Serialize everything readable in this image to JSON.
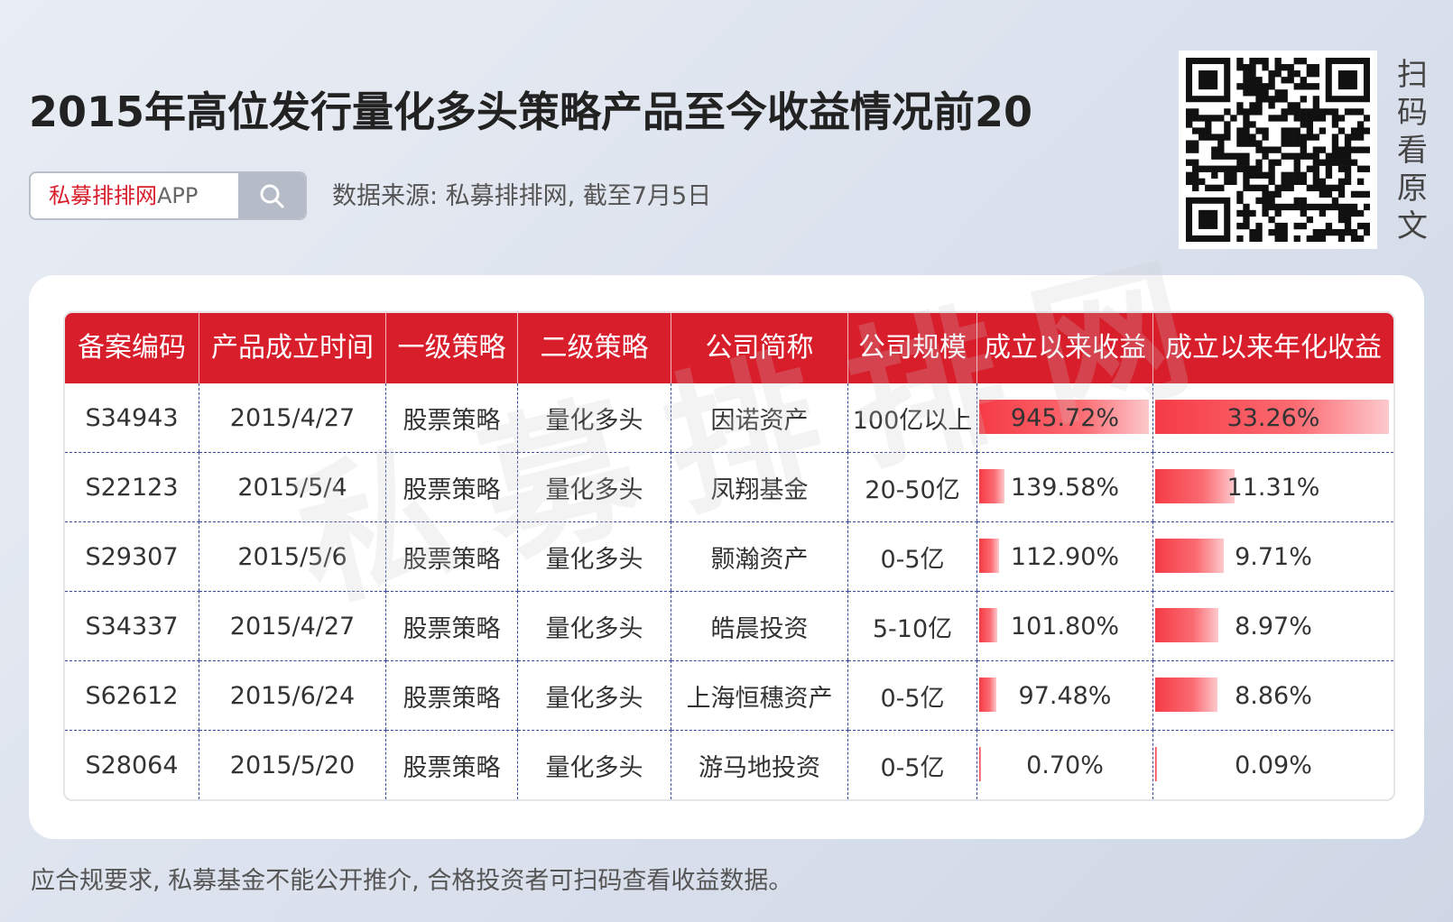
{
  "title": "2015年高位发行量化多头策略产品至今收益情况前20",
  "search": {
    "brand": "私募排排网",
    "suffix": "APP",
    "icon": "search-icon"
  },
  "source": "数据来源: 私募排排网, 截至7月5日",
  "qr_caption": [
    "扫",
    "码",
    "看",
    "原",
    "文"
  ],
  "watermark": "私募排排网",
  "table": {
    "headers": [
      "备案编码",
      "产品成立时间",
      "一级策略",
      "二级策略",
      "公司简称",
      "公司规模",
      "成立以来收益",
      "成立以来年化收益"
    ],
    "rows": [
      {
        "code": "S34943",
        "date": "2015/4/27",
        "s1": "股票策略",
        "s2": "量化多头",
        "company": "因诺资产",
        "scale": "100亿以上",
        "ret": "945.72%",
        "ret_v": 945.72,
        "ann": "33.26%",
        "ann_v": 33.26
      },
      {
        "code": "S22123",
        "date": "2015/5/4",
        "s1": "股票策略",
        "s2": "量化多头",
        "company": "凤翔基金",
        "scale": "20-50亿",
        "ret": "139.58%",
        "ret_v": 139.58,
        "ann": "11.31%",
        "ann_v": 11.31
      },
      {
        "code": "S29307",
        "date": "2015/5/6",
        "s1": "股票策略",
        "s2": "量化多头",
        "company": "颢瀚资产",
        "scale": "0-5亿",
        "ret": "112.90%",
        "ret_v": 112.9,
        "ann": "9.71%",
        "ann_v": 9.71
      },
      {
        "code": "S34337",
        "date": "2015/4/27",
        "s1": "股票策略",
        "s2": "量化多头",
        "company": "皓晨投资",
        "scale": "5-10亿",
        "ret": "101.80%",
        "ret_v": 101.8,
        "ann": "8.97%",
        "ann_v": 8.97
      },
      {
        "code": "S62612",
        "date": "2015/6/24",
        "s1": "股票策略",
        "s2": "量化多头",
        "company": "上海恒穗资产",
        "scale": "0-5亿",
        "ret": "97.48%",
        "ret_v": 97.48,
        "ann": "8.86%",
        "ann_v": 8.86
      },
      {
        "code": "S28064",
        "date": "2015/5/20",
        "s1": "股票策略",
        "s2": "量化多头",
        "company": "游马地投资",
        "scale": "0-5亿",
        "ret": "0.70%",
        "ret_v": 0.7,
        "ann": "0.09%",
        "ann_v": 0.09
      }
    ]
  },
  "footer": "应合规要求, 私募基金不能公开推介, 合格投资者可扫码查看收益数据。",
  "colors": {
    "accent": "#d81e2b",
    "bar": "#f53b45"
  }
}
